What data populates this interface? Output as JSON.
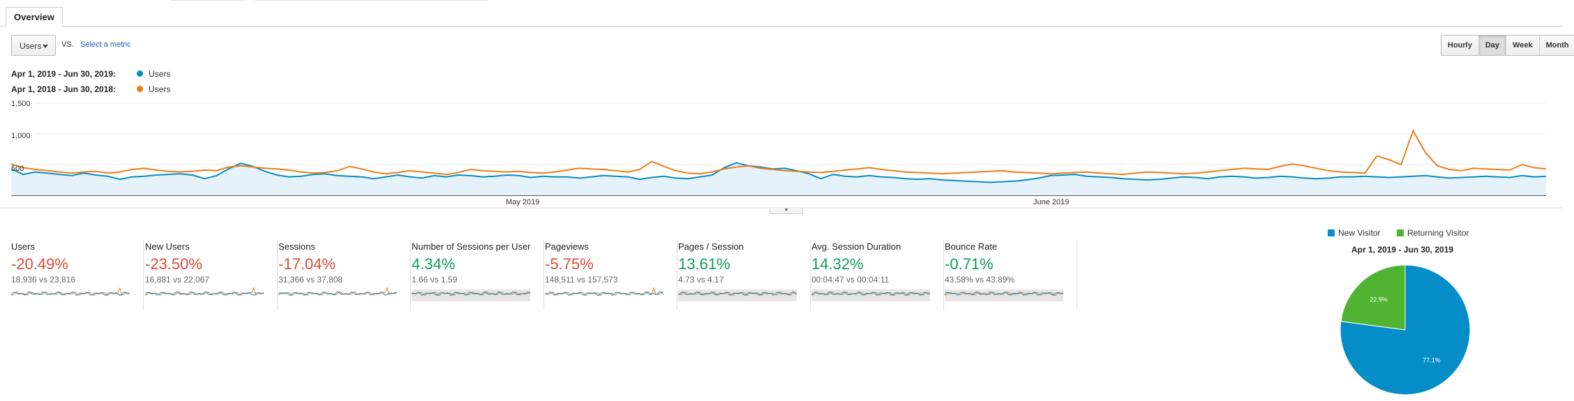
{
  "tabs": {
    "overview": "Overview"
  },
  "metric_selector": {
    "value": "Users",
    "vs": "VS.",
    "select_metric": "Select a metric"
  },
  "granularity": {
    "hourly": "Hourly",
    "day": "Day",
    "week": "Week",
    "month": "Month",
    "active": "Day"
  },
  "legend": [
    {
      "range": "Apr 1, 2019 - Jun 30, 2019:",
      "series": "Users",
      "color": "#058dc7"
    },
    {
      "range": "Apr 1, 2018 - Jun 30, 2018:",
      "series": "Users",
      "color": "#ed7e17"
    }
  ],
  "colors": {
    "current": "#058dc7",
    "previous": "#ed7e17",
    "area": "#e6f2fa",
    "negative": "#dd4b39",
    "positive": "#0f9d58"
  },
  "chart_data": [
    {
      "type": "line",
      "ylim": [
        0,
        1500
      ],
      "yticks": [
        "1,500",
        "1,000",
        "500"
      ],
      "xticks": [
        "May 2019",
        "June 2019"
      ],
      "series": [
        {
          "name": "Users",
          "period": "Apr 1, 2019 - Jun 30, 2019",
          "values": [
            430,
            340,
            380,
            360,
            340,
            320,
            360,
            330,
            310,
            260,
            300,
            310,
            330,
            340,
            350,
            330,
            270,
            320,
            430,
            520,
            470,
            390,
            330,
            300,
            310,
            340,
            350,
            320,
            310,
            300,
            270,
            300,
            330,
            300,
            280,
            320,
            300,
            330,
            320,
            300,
            310,
            330,
            320,
            290,
            310,
            300,
            300,
            280,
            300,
            320,
            310,
            300,
            260,
            290,
            310,
            280,
            270,
            300,
            330,
            450,
            530,
            480,
            460,
            430,
            440,
            400,
            350,
            270,
            340,
            310,
            300,
            320,
            300,
            290,
            270,
            260,
            270,
            250,
            240,
            230,
            220,
            210,
            220,
            230,
            250,
            280,
            320,
            330,
            340,
            310,
            300,
            290,
            270,
            260,
            250,
            260,
            280,
            300,
            290,
            270,
            300,
            310,
            300,
            280,
            290,
            310,
            300,
            280,
            270,
            280,
            300,
            300,
            310,
            300,
            290,
            300,
            310,
            320,
            300,
            280,
            290,
            300,
            310,
            300,
            290,
            320,
            300,
            310
          ]
        },
        {
          "name": "Users",
          "period": "Apr 1, 2018 - Jun 30, 2018",
          "values": [
            510,
            450,
            420,
            400,
            380,
            360,
            380,
            390,
            360,
            380,
            420,
            440,
            410,
            390,
            380,
            390,
            410,
            400,
            460,
            480,
            460,
            440,
            430,
            410,
            380,
            360,
            370,
            400,
            470,
            430,
            380,
            350,
            370,
            400,
            380,
            360,
            340,
            370,
            420,
            400,
            390,
            380,
            390,
            370,
            360,
            380,
            410,
            440,
            430,
            420,
            400,
            380,
            420,
            550,
            470,
            400,
            360,
            350,
            380,
            430,
            460,
            480,
            440,
            420,
            400,
            390,
            380,
            370,
            390,
            410,
            430,
            450,
            420,
            400,
            380,
            370,
            360,
            350,
            360,
            370,
            380,
            390,
            400,
            380,
            370,
            360,
            350,
            360,
            370,
            380,
            360,
            350,
            340,
            360,
            380,
            370,
            360,
            350,
            360,
            380,
            400,
            420,
            440,
            430,
            420,
            470,
            510,
            480,
            440,
            400,
            380,
            370,
            360,
            640,
            580,
            500,
            1050,
            700,
            480,
            420,
            400,
            440,
            430,
            420,
            410,
            500,
            450,
            430
          ]
        }
      ]
    },
    {
      "type": "pie",
      "title": "Apr 1, 2019 - Jun 30, 2019",
      "legend": [
        "New Visitor",
        "Returning Visitor"
      ],
      "values": [
        77.1,
        22.9
      ],
      "labels": [
        "77.1%",
        "22.9%"
      ],
      "colors": [
        "#058dc7",
        "#50b432"
      ]
    }
  ],
  "metrics": [
    {
      "label": "Users",
      "change": "-20.49%",
      "trend": "negative",
      "compare": "18,936 vs 23,816",
      "spark": "shaped"
    },
    {
      "label": "New Users",
      "change": "-23.50%",
      "trend": "negative",
      "compare": "16,881 vs 22,067",
      "spark": "shaped"
    },
    {
      "label": "Sessions",
      "change": "-17.04%",
      "trend": "negative",
      "compare": "31,366 vs 37,808",
      "spark": "shaped"
    },
    {
      "label": "Number of Sessions per User",
      "change": "4.34%",
      "trend": "positive",
      "compare": "1.66 vs 1.59",
      "spark": "flat"
    },
    {
      "label": "Pageviews",
      "change": "-5.75%",
      "trend": "negative",
      "compare": "148,511 vs 157,573",
      "spark": "shaped"
    },
    {
      "label": "Pages / Session",
      "change": "13.61%",
      "trend": "positive",
      "compare": "4.73 vs 4.17",
      "spark": "flat"
    },
    {
      "label": "Avg. Session Duration",
      "change": "14.32%",
      "trend": "positive",
      "compare": "00:04:47 vs 00:04:11",
      "spark": "flat"
    },
    {
      "label": "Bounce Rate",
      "change": "-0.71%",
      "trend": "positive",
      "compare": "43.58% vs 43.89%",
      "spark": "flat"
    }
  ]
}
